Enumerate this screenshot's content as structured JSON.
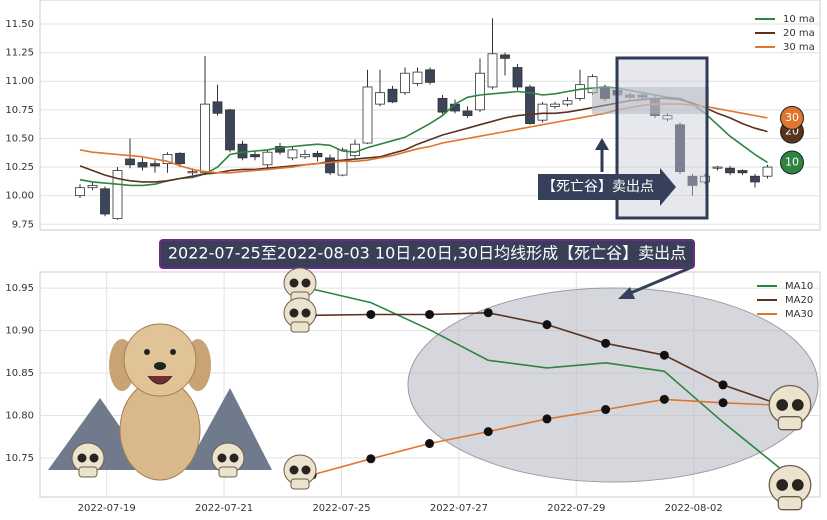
{
  "chart_data": [
    {
      "type": "candlestick",
      "open": [
        10.0,
        10.07,
        10.06,
        9.8,
        10.32,
        10.29,
        10.28,
        10.28,
        10.37,
        10.2,
        10.2,
        10.82,
        10.75,
        10.45,
        10.36,
        10.27,
        10.43,
        10.33,
        10.34,
        10.37,
        10.33,
        10.18,
        10.35,
        10.46,
        10.8,
        10.93,
        10.9,
        10.98,
        11.1,
        10.85,
        10.8,
        10.74,
        10.75,
        10.95,
        11.23,
        11.12,
        10.95,
        10.66,
        10.78,
        10.8,
        10.85,
        10.9,
        10.95,
        10.92,
        10.88,
        10.88,
        10.85,
        10.67,
        10.62,
        10.17,
        10.12,
        10.24,
        10.24,
        10.22,
        10.17,
        10.17
      ],
      "high": [
        10.1,
        10.12,
        10.08,
        10.25,
        10.5,
        10.33,
        10.31,
        10.38,
        10.38,
        10.24,
        11.22,
        10.97,
        10.76,
        10.48,
        10.39,
        10.4,
        10.46,
        10.43,
        10.4,
        10.39,
        10.36,
        10.42,
        10.49,
        11.1,
        11.1,
        10.96,
        11.12,
        11.12,
        11.12,
        10.88,
        10.84,
        10.78,
        11.2,
        11.55,
        11.25,
        11.15,
        10.97,
        10.82,
        10.82,
        10.86,
        11.1,
        11.06,
        10.97,
        10.94,
        10.9,
        10.9,
        10.87,
        10.72,
        10.64,
        10.19,
        10.19,
        10.26,
        10.26,
        10.23,
        10.19,
        10.27
      ],
      "low": [
        9.98,
        10.05,
        9.82,
        9.79,
        10.24,
        10.22,
        10.2,
        10.2,
        10.25,
        10.18,
        10.18,
        10.7,
        10.38,
        10.31,
        10.31,
        10.22,
        10.36,
        10.31,
        10.32,
        10.3,
        10.18,
        10.17,
        10.33,
        10.45,
        10.78,
        10.81,
        10.88,
        10.96,
        10.97,
        10.71,
        10.72,
        10.68,
        10.73,
        10.93,
        11.05,
        10.92,
        10.62,
        10.64,
        10.76,
        10.78,
        10.83,
        10.88,
        10.83,
        10.86,
        10.84,
        10.84,
        10.68,
        10.65,
        10.19,
        10.0,
        10.1,
        10.22,
        10.18,
        10.18,
        10.07,
        10.15
      ],
      "close": [
        10.07,
        10.09,
        9.84,
        10.22,
        10.27,
        10.25,
        10.26,
        10.36,
        10.28,
        10.21,
        10.8,
        10.72,
        10.4,
        10.33,
        10.34,
        10.38,
        10.38,
        10.4,
        10.36,
        10.34,
        10.2,
        10.4,
        10.45,
        10.95,
        10.9,
        10.82,
        11.07,
        11.08,
        10.99,
        10.73,
        10.74,
        10.7,
        11.07,
        11.24,
        11.2,
        10.95,
        10.63,
        10.8,
        10.8,
        10.83,
        10.97,
        11.04,
        10.85,
        10.88,
        10.86,
        10.86,
        10.7,
        10.7,
        10.21,
        10.09,
        10.17,
        10.25,
        10.2,
        10.2,
        10.12,
        10.25
      ],
      "up_color": "#ffffff",
      "down_color": "#3b4459",
      "series": [
        {
          "name": "10 ma",
          "color": "#2e8540",
          "end_label": "10",
          "values": [
            10.14,
            10.12,
            10.11,
            10.1,
            10.09,
            10.09,
            10.1,
            10.13,
            10.15,
            10.16,
            10.19,
            10.25,
            10.36,
            10.38,
            10.39,
            10.4,
            10.42,
            10.43,
            10.44,
            10.45,
            10.44,
            10.39,
            10.38,
            10.42,
            10.45,
            10.48,
            10.51,
            10.57,
            10.63,
            10.7,
            10.8,
            10.86,
            10.88,
            10.89,
            10.9,
            10.91,
            10.9,
            10.88,
            10.89,
            10.91,
            10.93,
            10.94,
            10.95,
            10.94,
            10.92,
            10.9,
            10.88,
            10.86,
            10.85,
            10.8,
            10.72,
            10.62,
            10.52,
            10.44,
            10.36,
            10.29
          ]
        },
        {
          "name": "20 ma",
          "color": "#5a3220",
          "end_label": "20",
          "values": [
            10.26,
            10.22,
            10.18,
            10.15,
            10.13,
            10.12,
            10.12,
            10.13,
            10.15,
            10.17,
            10.19,
            10.2,
            10.22,
            10.23,
            10.23,
            10.24,
            10.25,
            10.26,
            10.27,
            10.28,
            10.3,
            10.31,
            10.32,
            10.33,
            10.34,
            10.37,
            10.4,
            10.45,
            10.49,
            10.53,
            10.56,
            10.59,
            10.62,
            10.65,
            10.68,
            10.7,
            10.71,
            10.72,
            10.72,
            10.73,
            10.75,
            10.77,
            10.79,
            10.81,
            10.83,
            10.84,
            10.85,
            10.85,
            10.84,
            10.81,
            10.77,
            10.72,
            10.68,
            10.63,
            10.59,
            10.56
          ]
        },
        {
          "name": "30 ma",
          "color": "#e0752d",
          "end_label": "30",
          "values": [
            10.4,
            10.38,
            10.37,
            10.36,
            10.35,
            10.34,
            10.32,
            10.3,
            10.26,
            10.23,
            10.21,
            10.2,
            10.2,
            10.21,
            10.22,
            10.23,
            10.24,
            10.25,
            10.27,
            10.28,
            10.29,
            10.3,
            10.3,
            10.31,
            10.33,
            10.35,
            10.38,
            10.41,
            10.43,
            10.46,
            10.48,
            10.5,
            10.52,
            10.54,
            10.56,
            10.58,
            10.6,
            10.62,
            10.64,
            10.66,
            10.68,
            10.7,
            10.72,
            10.75,
            10.77,
            10.79,
            10.8,
            10.8,
            10.8,
            10.79,
            10.78,
            10.76,
            10.74,
            10.72,
            10.7,
            10.68
          ]
        }
      ],
      "ylim": [
        9.7,
        11.71
      ],
      "yticks": [
        9.75,
        {
          "value": 10.0,
          "label": "10.00"
        },
        10.25,
        {
          "value": 10.5,
          "label": "10.50"
        },
        10.75,
        {
          "value": 11.0,
          "label": "11.00"
        },
        11.25,
        {
          "value": 11.5,
          "label": "11.50"
        }
      ],
      "grid": true,
      "legend": "upper right",
      "annotation": "【死亡谷】卖出点"
    },
    {
      "type": "line",
      "categories": [
        null,
        "2022-07-19",
        null,
        "2022-07-21",
        null,
        "2022-07-25",
        null,
        "2022-07-27",
        null,
        "2022-07-29",
        null,
        "2022-08-02",
        null
      ],
      "series": [
        {
          "name": "MA10",
          "color": "#2e8540",
          "marker": false,
          "values": [
            null,
            null,
            null,
            null,
            10.949,
            10.933,
            10.901,
            10.865,
            10.856,
            10.862,
            10.852,
            10.792,
            10.736
          ]
        },
        {
          "name": "MA20",
          "color": "#5a3220",
          "marker": true,
          "values": [
            null,
            null,
            null,
            null,
            10.918,
            10.919,
            10.919,
            10.921,
            10.907,
            10.885,
            10.871,
            10.836,
            10.812
          ]
        },
        {
          "name": "MA30",
          "color": "#e0752d",
          "marker": true,
          "values": [
            null,
            null,
            null,
            null,
            10.73,
            10.749,
            10.767,
            10.781,
            10.796,
            10.807,
            10.819,
            10.815,
            10.812
          ]
        }
      ],
      "ylim": [
        10.704,
        10.969
      ],
      "yticks": [
        10.75,
        {
          "value": 10.8,
          "label": "10.80"
        },
        10.85,
        {
          "value": 10.9,
          "label": "10.90"
        },
        10.95
      ],
      "grid": true,
      "legend": "upper right"
    }
  ],
  "banner": {
    "text": "2022-07-25至2022-08-03 10日,20日,30日均线形成【死亡谷】卖出点"
  }
}
